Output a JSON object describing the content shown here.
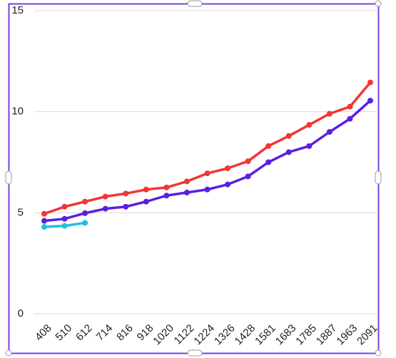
{
  "chart_data": {
    "type": "line",
    "categories": [
      "408",
      "510",
      "612",
      "714",
      "816",
      "918",
      "1020",
      "1122",
      "1224",
      "1326",
      "1428",
      "1581",
      "1683",
      "1785",
      "1887",
      "1963",
      "2091"
    ],
    "series": [
      {
        "color": "#f23535",
        "values": [
          4.95,
          5.3,
          5.55,
          5.8,
          5.95,
          6.15,
          6.25,
          6.55,
          6.95,
          7.2,
          7.55,
          8.3,
          8.8,
          9.35,
          9.9,
          10.25,
          11.45
        ]
      },
      {
        "color": "#5b1fe0",
        "values": [
          4.6,
          4.7,
          4.98,
          5.2,
          5.3,
          5.55,
          5.85,
          6.0,
          6.15,
          6.4,
          6.8,
          7.5,
          8.0,
          8.3,
          9.0,
          9.65,
          10.55
        ]
      },
      {
        "color": "#1fc0e0",
        "values": [
          4.3,
          4.35,
          4.5,
          null,
          null,
          null,
          null,
          null,
          null,
          null,
          null,
          null,
          null,
          null,
          null,
          null,
          null
        ]
      }
    ],
    "ylim": [
      0,
      15
    ],
    "yticks": [
      0,
      5,
      10,
      15
    ],
    "grid": true
  }
}
